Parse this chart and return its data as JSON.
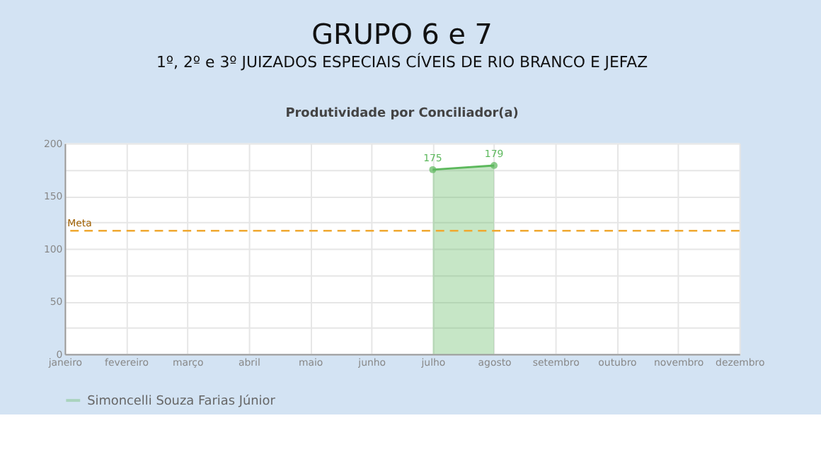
{
  "chart_data": {
    "type": "area",
    "title": "GRUPO 6 e 7",
    "subtitle": "1º, 2º e 3º JUIZADOS ESPECIAIS CÍVEIS DE RIO BRANCO E JEFAZ",
    "annotations": [
      "Produtividade por Conciliador(a)"
    ],
    "categories": [
      "janeiro",
      "fevereiro",
      "março",
      "abril",
      "maio",
      "junho",
      "julho",
      "agosto",
      "setembro",
      "outubro",
      "novembro",
      "dezembro"
    ],
    "series": [
      {
        "name": "Simoncelli Souza Farias Júnior",
        "color": "#5cb85c",
        "values": [
          null,
          null,
          null,
          null,
          null,
          null,
          175,
          179,
          null,
          null,
          null,
          null
        ]
      }
    ],
    "ylim": [
      0,
      200
    ],
    "yticks": [
      0,
      {
        "value": 25,
        "label": null
      },
      50,
      {
        "value": 75,
        "label": null
      },
      100,
      {
        "value": 125,
        "label": null
      },
      150,
      {
        "value": 175,
        "label": null
      },
      200
    ],
    "ref_lines": [
      {
        "axis": "y",
        "value": 117,
        "label": "Meta",
        "color": "#f0a830",
        "line_style": "dashed"
      }
    ],
    "grid": true,
    "legend": "bottom left",
    "marker": "circle",
    "data_labels": true
  }
}
